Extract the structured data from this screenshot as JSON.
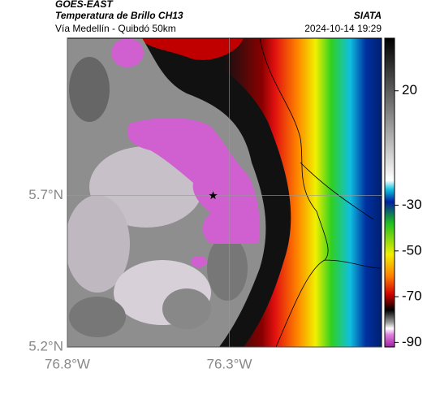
{
  "header": {
    "source": "GOES-EAST",
    "title": "Temperatura de Brillo CH13",
    "brand": "SIATA",
    "subtitle": "Vía Medellín - Quibdó 50km",
    "timestamp": "2024-10-14 19:29"
  },
  "map": {
    "lonlim": [
      -76.8,
      -75.83
    ],
    "latlim": [
      5.2,
      6.22
    ],
    "lon_ticks": [
      {
        "value": -76.8,
        "label": "76.8°W"
      },
      {
        "value": -76.3,
        "label": "76.3°W"
      }
    ],
    "lat_ticks": [
      {
        "value": 5.7,
        "label": "5.7°N"
      },
      {
        "value": 5.2,
        "label": "5.2°N"
      }
    ],
    "marker": {
      "lon": -76.35,
      "lat": 5.7
    }
  },
  "colorbar": {
    "lim": [
      -92,
      43
    ],
    "ticks": [
      20,
      -30,
      -50,
      -70,
      -90
    ]
  }
}
